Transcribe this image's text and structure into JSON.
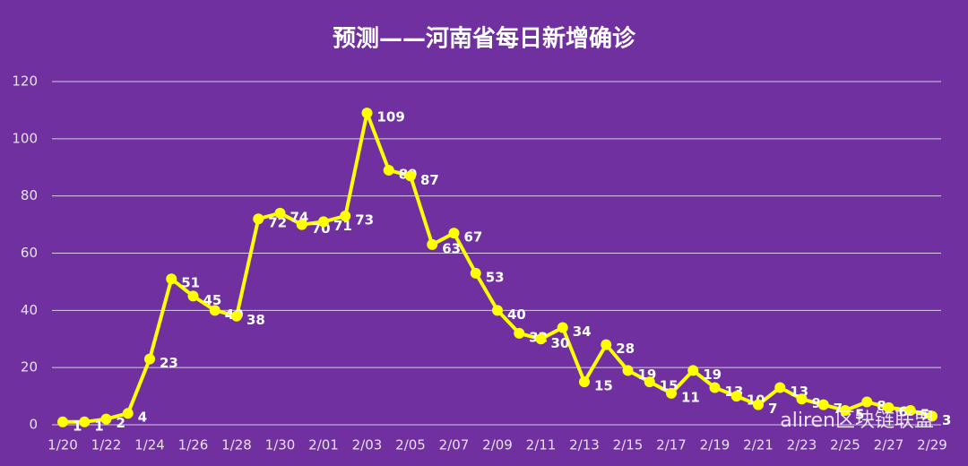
{
  "chart_data": {
    "type": "line",
    "title": "预测——河南省每日新增确诊",
    "categories": [
      "1/20",
      null,
      "1/22",
      null,
      "1/24",
      null,
      "1/26",
      null,
      "1/28",
      null,
      "1/30",
      null,
      "2/01",
      null,
      "2/03",
      null,
      "2/05",
      null,
      "2/07",
      null,
      "2/09",
      null,
      "2/11",
      null,
      "2/13",
      null,
      "2/15",
      null,
      "2/17",
      null,
      "2/19",
      null,
      "2/21",
      null,
      "2/23",
      null,
      "2/25",
      null,
      "2/27",
      null,
      "2/29"
    ],
    "series": [
      {
        "color": "#ffff00",
        "values": [
          1,
          1,
          2,
          4,
          23,
          51,
          45,
          40,
          38,
          72,
          74,
          70,
          71,
          73,
          109,
          89,
          87,
          63,
          67,
          53,
          40,
          32,
          30,
          34,
          15,
          28,
          19,
          15,
          11,
          19,
          13,
          10,
          7,
          13,
          9,
          7,
          5,
          8,
          6,
          5,
          3
        ]
      }
    ],
    "ylim": [
      0,
      120
    ],
    "yticks": [
      0,
      20,
      40,
      60,
      80,
      100,
      120
    ],
    "grid": true,
    "background": "#7030a0",
    "watermark": "aliren区块链联盟"
  }
}
